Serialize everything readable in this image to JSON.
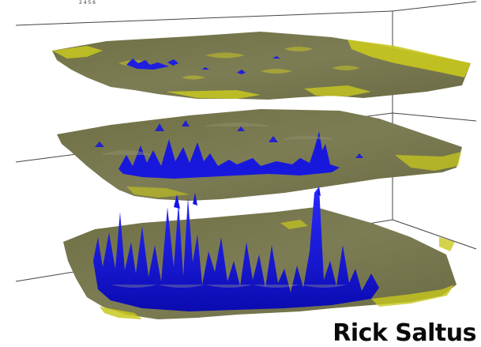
{
  "figure": {
    "caption": "Rick Saltus",
    "tick_fragment": "2 4 5 6",
    "layer_count": 3,
    "colors": {
      "background": "#ffffff",
      "surface_base": "#77774f",
      "surface_highlight": "#c8c81e",
      "peak": "#1414e6",
      "frame_line": "#444444"
    }
  }
}
